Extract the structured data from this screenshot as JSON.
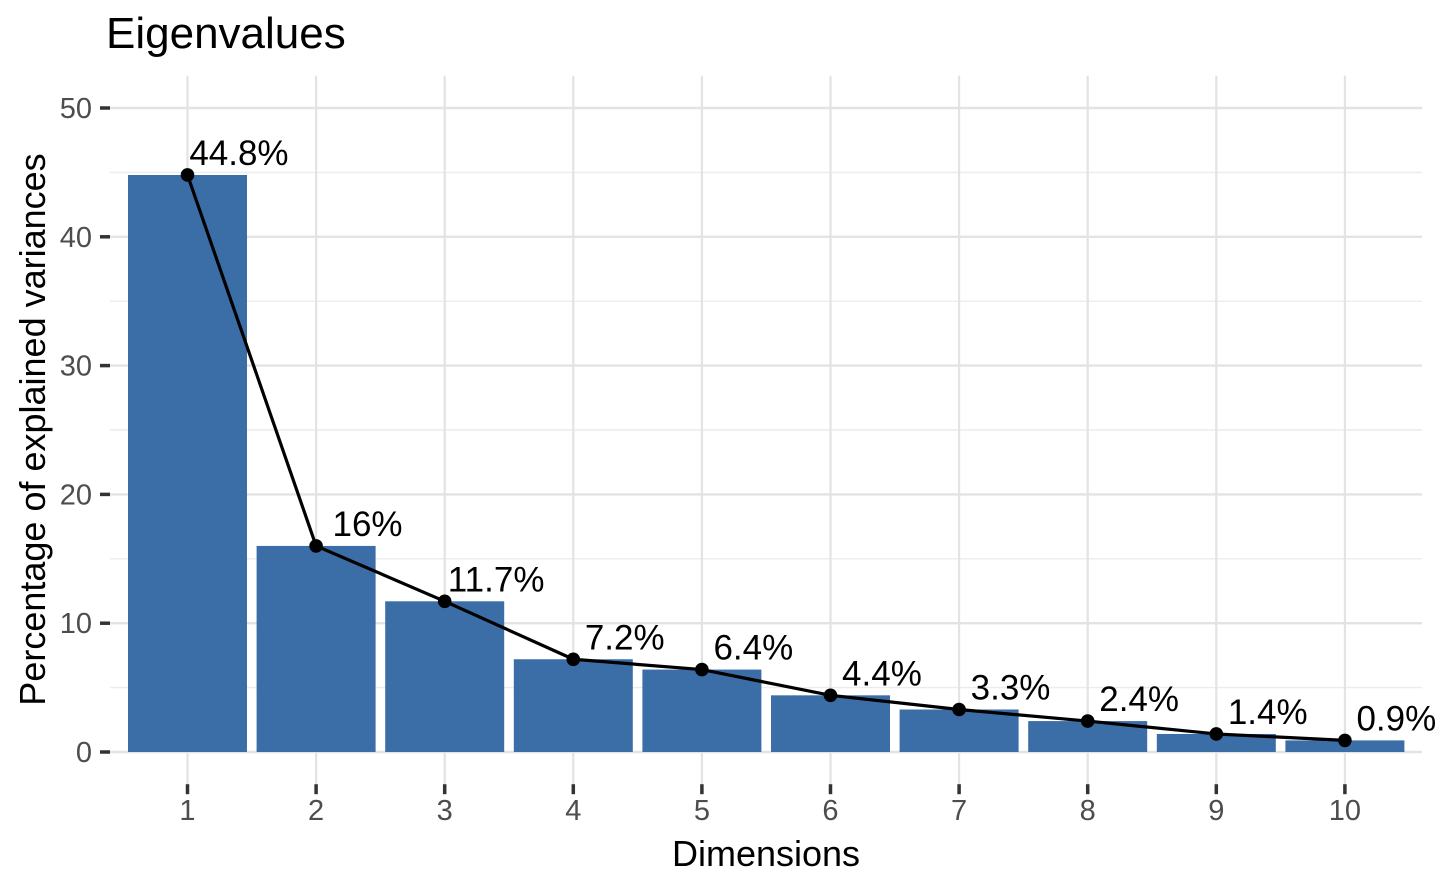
{
  "chart_data": {
    "type": "scree (bar + line overlay)",
    "title": "Eigenvalues",
    "xlabel": "Dimensions",
    "ylabel": "Percentage of explained variances",
    "categories": [
      "1",
      "2",
      "3",
      "4",
      "5",
      "6",
      "7",
      "8",
      "9",
      "10"
    ],
    "values": [
      44.8,
      16,
      11.7,
      7.2,
      6.4,
      4.4,
      3.3,
      2.4,
      1.4,
      0.9
    ],
    "point_labels": [
      "44.8%",
      "16%",
      "11.7%",
      "7.2%",
      "6.4%",
      "4.4%",
      "3.3%",
      "2.4%",
      "1.4%",
      "0.9%"
    ],
    "ylim": [
      0,
      50
    ],
    "y_ticks": [
      0,
      10,
      20,
      30,
      40,
      50
    ],
    "y_minor_ticks": [
      5,
      15,
      25,
      35,
      45
    ],
    "grid": "major and minor horizontal, major vertical, light gray on white",
    "legend_position": "none",
    "colors": {
      "bar_fill": "#3B6DA6",
      "line": "#000000",
      "point": "#000000",
      "data_label": "#000000",
      "grid_major": "#E3E3E3",
      "grid_minor": "#ECECEC",
      "axis_tick": "#333333",
      "tick_label": "#4D4D4D",
      "title_text": "#000000",
      "background": "#FFFFFF"
    }
  }
}
